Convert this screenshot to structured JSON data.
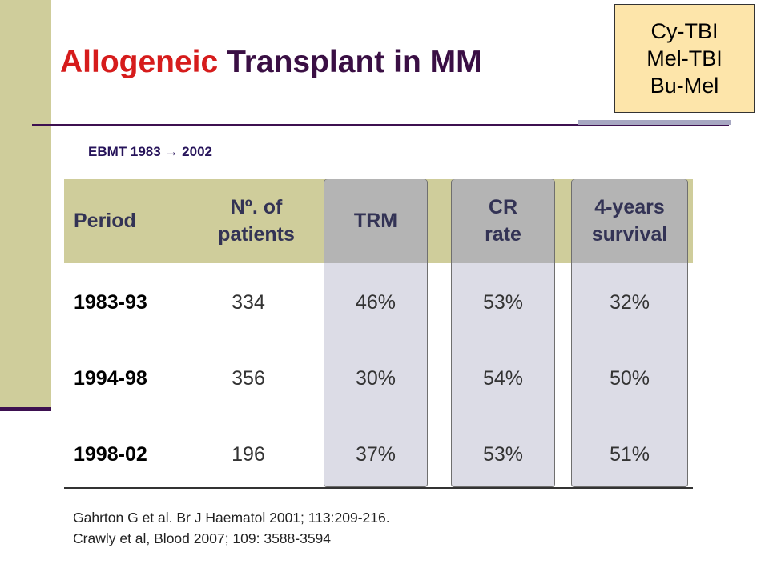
{
  "slide": {
    "title_part1": "Allogeneic",
    "title_part2": "Transplant in MM",
    "regimens": [
      "Cy-TBI",
      "Mel-TBI",
      "Bu-Mel"
    ],
    "source_prefix": "EBMT 1983",
    "source_arrow": "→",
    "source_suffix": "2002"
  },
  "table": {
    "headers": {
      "period": "Period",
      "patients_line1": "Nº. of",
      "patients_line2": "patients",
      "trm": "TRM",
      "cr_line1": "CR",
      "cr_line2": "rate",
      "surv_line1": "4-years",
      "surv_line2": "survival"
    },
    "rows": [
      {
        "period": "1983-93",
        "patients": "334",
        "trm": "46%",
        "cr": "53%",
        "survival": "32%"
      },
      {
        "period": "1994-98",
        "patients": "356",
        "trm": "30%",
        "cr": "54%",
        "survival": "50%"
      },
      {
        "period": "1998-02",
        "patients": "196",
        "trm": "37%",
        "cr": "53%",
        "survival": "51%"
      }
    ]
  },
  "references": [
    "Gahrton G et al. Br J Haematol 2001; 113:209-216.",
    "Crawly et al, Blood 2007; 109: 3588-3594"
  ]
}
